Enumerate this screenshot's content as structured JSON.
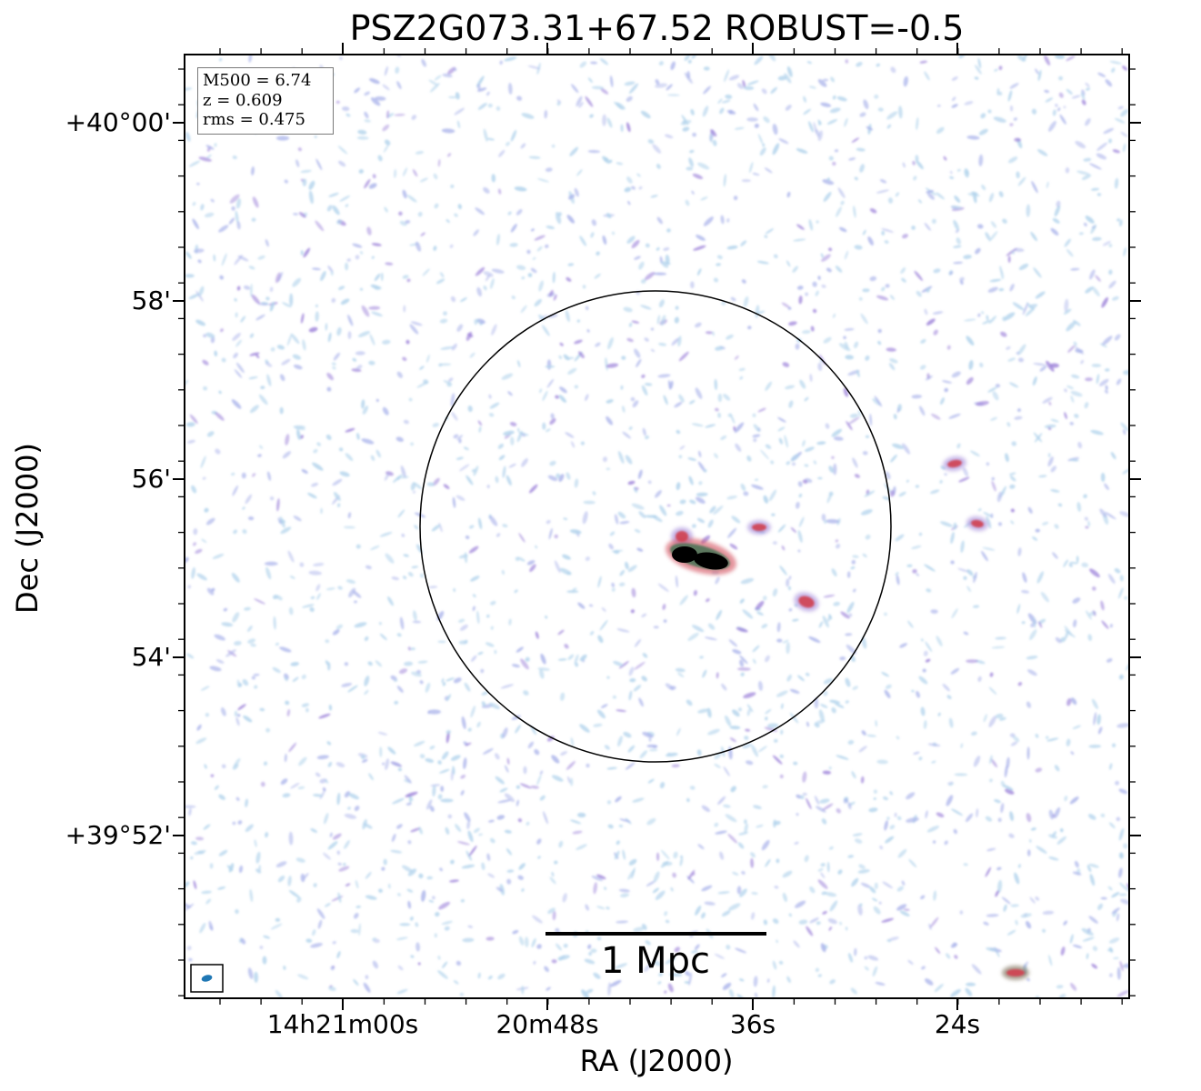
{
  "title": "PSZ2G073.31+67.52 ROBUST=-0.5",
  "info": {
    "m500": "M500 = 6.74",
    "z": "z = 0.609",
    "rms": "rms = 0.475"
  },
  "axes": {
    "x_label": "RA (J2000)",
    "y_label": "Dec (J2000)",
    "x_ticks": [
      "14h21m00s",
      "20m48s",
      "36s",
      "24s"
    ],
    "y_ticks": [
      "+40°00'",
      "58'",
      "56'",
      "54'",
      "+39°52'"
    ]
  },
  "scale_bar": {
    "label": "1 Mpc"
  },
  "colors": {
    "frame": "#000000",
    "noise_light": "#b3d4ec",
    "noise_mid": "#a9b2ea",
    "noise_strong": "#9b80d8",
    "hot": "#d04050",
    "core": "#000000",
    "beam": "#1f77b4"
  }
}
